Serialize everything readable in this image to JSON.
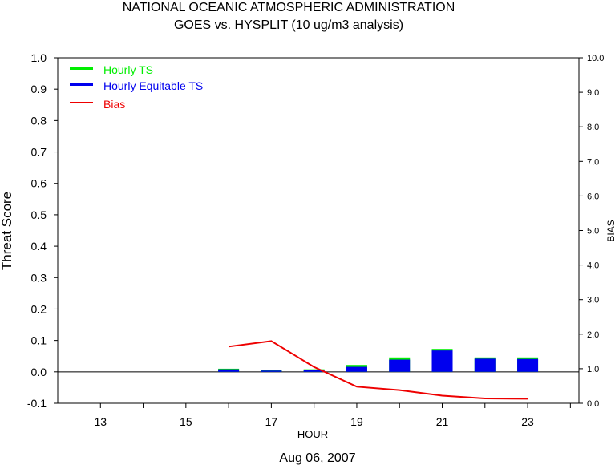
{
  "chart_data": {
    "type": "bar",
    "title": "NATIONAL OCEANIC ATMOSPHERIC ADMINISTRATION",
    "subtitle": "GOES vs. HYSPLIT  (10 ug/m3 analysis)",
    "xlabel": "HOUR",
    "ylabel": "Threat Score",
    "y2label": "BIAS",
    "date_label": "Aug 06, 2007",
    "xlim": [
      12,
      24.2
    ],
    "ylim": [
      -0.1,
      1.0
    ],
    "y2lim": [
      0.0,
      10.0
    ],
    "x_ticks": [
      13,
      14,
      15,
      16,
      17,
      18,
      19,
      20,
      21,
      22,
      23,
      24
    ],
    "x_tick_labels": [
      "13",
      "",
      "15",
      "",
      "17",
      "",
      "19",
      "",
      "21",
      "",
      "23",
      ""
    ],
    "y_ticks": [
      "-0.1",
      "0.0",
      "0.1",
      "0.2",
      "0.3",
      "0.4",
      "0.5",
      "0.6",
      "0.7",
      "0.8",
      "0.9",
      "1.0"
    ],
    "y2_ticks": [
      "0.0",
      "1.0",
      "2.0",
      "3.0",
      "4.0",
      "5.0",
      "6.0",
      "7.0",
      "8.0",
      "9.0",
      "10.0"
    ],
    "x": [
      16,
      17,
      18,
      19,
      20,
      21,
      22,
      23
    ],
    "series": [
      {
        "name": "Hourly TS",
        "type": "bar",
        "color": "#00ee00",
        "values": [
          0.01,
          0.006,
          0.008,
          0.022,
          0.046,
          0.073,
          0.046,
          0.046
        ]
      },
      {
        "name": "Hourly Equitable TS",
        "type": "bar",
        "color": "#0000ee",
        "values": [
          0.008,
          0.004,
          0.005,
          0.016,
          0.039,
          0.068,
          0.042,
          0.041
        ]
      },
      {
        "name": "Bias",
        "type": "line",
        "axis": "right",
        "color": "#ee0000",
        "values": [
          1.64,
          1.8,
          1.05,
          0.48,
          0.38,
          0.22,
          0.14,
          0.13
        ]
      }
    ],
    "legend": "top-left",
    "grid": false
  }
}
